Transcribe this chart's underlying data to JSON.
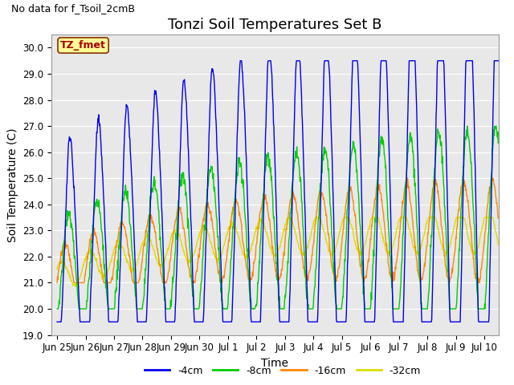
{
  "title": "Tonzi Soil Temperatures Set B",
  "no_data_text": "No data for f_Tsoil_2cmB",
  "annotation_text": "TZ_fmet",
  "xlabel": "Time",
  "ylabel": "Soil Temperature (C)",
  "ylim": [
    19.0,
    30.5
  ],
  "yticks": [
    19.0,
    20.0,
    21.0,
    22.0,
    23.0,
    24.0,
    25.0,
    26.0,
    27.0,
    28.0,
    29.0,
    30.0
  ],
  "xtick_labels": [
    "Jun 25",
    "Jun 26",
    "Jun 27",
    "Jun 28",
    "Jun 29",
    "Jun 30",
    "Jul 1",
    "Jul 2",
    "Jul 3",
    "Jul 4",
    "Jul 5",
    "Jul 6",
    "Jul 7",
    "Jul 8",
    "Jul 9",
    "Jul 10"
  ],
  "line_colors": [
    "#0000ee",
    "#00cc00",
    "#ff8800",
    "#dddd00"
  ],
  "line_labels": [
    "-4cm",
    "-8cm",
    "-16cm",
    "-32cm"
  ],
  "bg_color": "#e8e8e8",
  "fig_bg_color": "#ffffff",
  "annotation_bg": "#ffff99",
  "annotation_border": "#883300",
  "grid_color": "#ffffff",
  "title_fontsize": 13,
  "axis_label_fontsize": 10,
  "tick_fontsize": 8.5,
  "no_data_fontsize": 9
}
